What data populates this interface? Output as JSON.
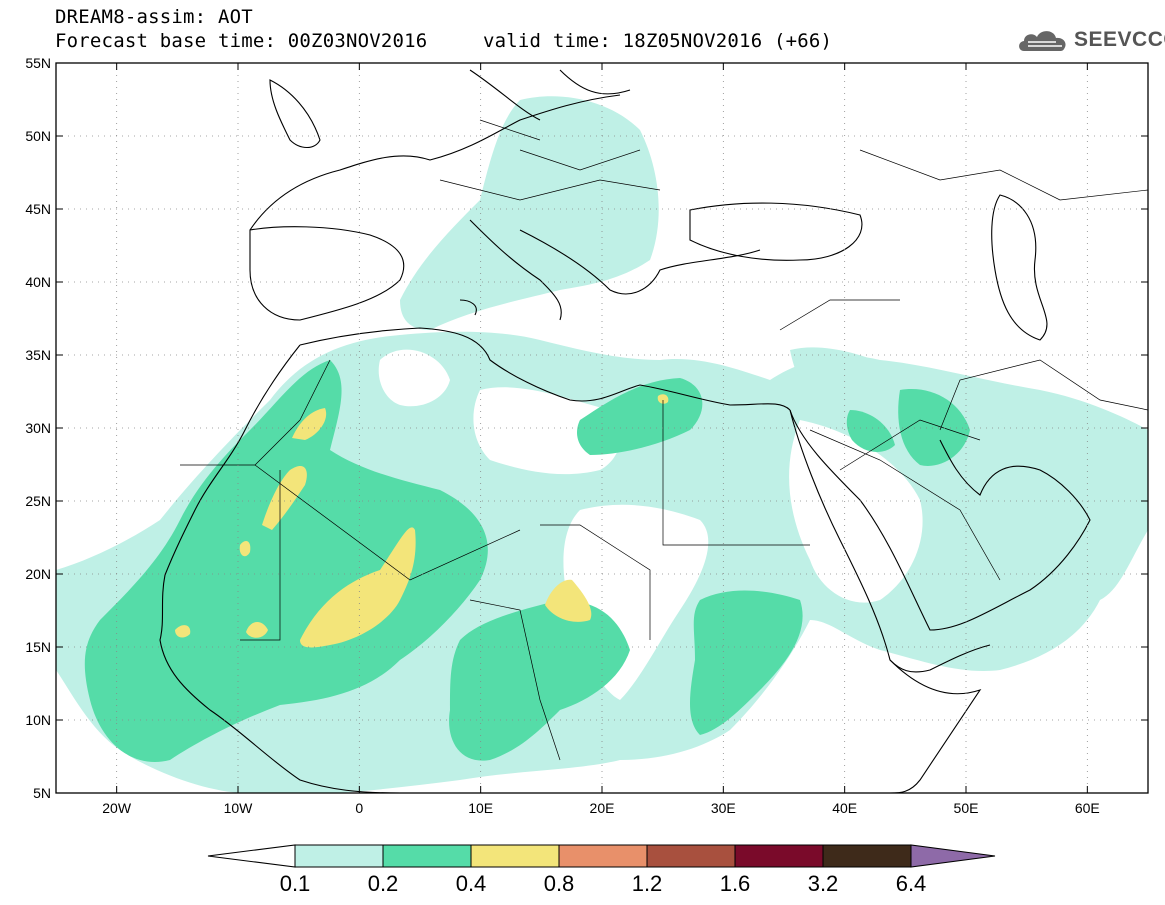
{
  "header": {
    "title": "DREAM8-assim: AOT",
    "base_time": "Forecast base time: 00Z03NOV2016",
    "valid_time": "valid time: 18Z05NOV2016 (+66)"
  },
  "logo": {
    "text": "SEEVCCC",
    "icon": "cloud-logo-icon"
  },
  "map": {
    "lon_range": [
      -25,
      65
    ],
    "lat_range": [
      5,
      55
    ],
    "x_ticks": [
      "20W",
      "10W",
      "0",
      "10E",
      "20E",
      "30E",
      "40E",
      "50E",
      "60E"
    ],
    "y_ticks": [
      "55N",
      "50N",
      "45N",
      "40N",
      "35N",
      "30N",
      "25N",
      "20N",
      "15N",
      "10N",
      "5N"
    ],
    "gridlines": "dotted"
  },
  "colorbar": {
    "labels": [
      "0.1",
      "0.2",
      "0.4",
      "0.8",
      "1.2",
      "1.6",
      "3.2",
      "6.4"
    ],
    "colors": [
      "#ffffff",
      "#bff0e6",
      "#55dca8",
      "#f3e57a",
      "#e8906a",
      "#a8503e",
      "#7a0a2a",
      "#3e2a1a",
      "#8e6aa8"
    ]
  }
}
